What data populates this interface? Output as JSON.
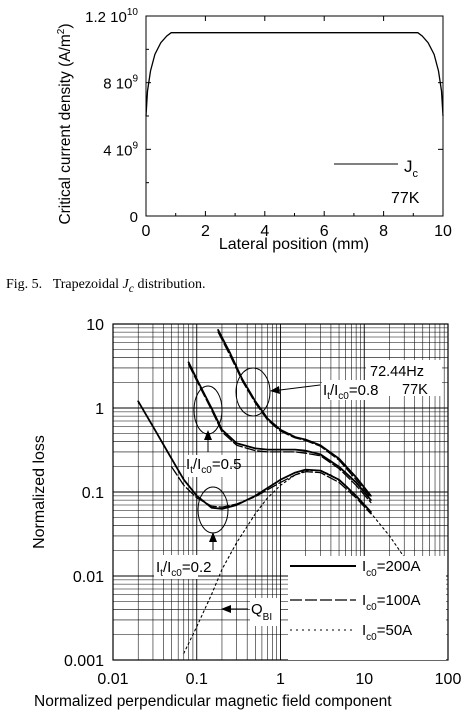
{
  "caption": {
    "fig_label": "Fig. 5.",
    "text_before": "Trapezoidal",
    "symbol": "J",
    "symbol_sub": "c",
    "text_after": "distribution."
  },
  "chart_data": [
    {
      "type": "line",
      "title": "",
      "xlabel": "Lateral position (mm)",
      "ylabel": "Critical current density (A/m",
      "ylabel_sup": "2",
      "ylabel_end": ")",
      "xlim": [
        0,
        10
      ],
      "ylim": [
        0,
        12000000000.0
      ],
      "x_ticks": [
        {
          "value": 0,
          "label": "0"
        },
        {
          "value": 2,
          "label": "2"
        },
        {
          "value": 4,
          "label": "4"
        },
        {
          "value": 6,
          "label": "6"
        },
        {
          "value": 8,
          "label": "8"
        },
        {
          "value": 10,
          "label": "10"
        }
      ],
      "y_ticks": [
        {
          "value": 0,
          "mantissa": "0",
          "exponent": ""
        },
        {
          "value": 4000000000.0,
          "mantissa": "4 10",
          "exponent": "9"
        },
        {
          "value": 8000000000.0,
          "mantissa": "8 10",
          "exponent": "9"
        },
        {
          "value": 12000000000.0,
          "mantissa": "1.2 10",
          "exponent": "10"
        }
      ],
      "grid": false,
      "legend": {
        "position": "bottom-right",
        "label": "J",
        "label_sub": "c"
      },
      "annotation": "77K",
      "series": [
        {
          "name": "Jc",
          "x": [
            0,
            0.05,
            0.15,
            0.3,
            0.5,
            0.7,
            0.85,
            9.15,
            9.3,
            9.5,
            9.7,
            9.85,
            9.95,
            10
          ],
          "y": [
            6000000000.0,
            7500000000.0,
            8700000000.0,
            9700000000.0,
            10400000000.0,
            10800000000.0,
            11000000000.0,
            11000000000.0,
            10800000000.0,
            10400000000.0,
            9700000000.0,
            8700000000.0,
            7500000000.0,
            6000000000.0
          ]
        }
      ]
    },
    {
      "type": "line",
      "title": "",
      "xlabel": "Normalized perpendicular  magnetic field component",
      "ylabel": "Normalized loss",
      "x_scale": "log",
      "y_scale": "log",
      "xlim": [
        0.01,
        100
      ],
      "ylim": [
        0.001,
        10
      ],
      "x_ticks": [
        "0.01",
        "0.1",
        "1",
        "10",
        "100"
      ],
      "y_ticks": [
        "0.001",
        "0.01",
        "0.1",
        "1",
        "10"
      ],
      "grid": true,
      "annotations": {
        "frequency": "72.44Hz",
        "temperature": "77K",
        "ratio_prefix": "I",
        "ratio_sub_t": "t",
        "ratio_mid": "/I",
        "ratio_sub_c0": "c0",
        "ratio_08": "=0.8",
        "ratio_05": "=0.5",
        "ratio_02": "=0.2",
        "q_main": "Q",
        "q_sub": "BI"
      },
      "legend": {
        "position": "bottom-right",
        "prefix": "I",
        "sub": "c0",
        "entries": [
          "=200A",
          "=100A",
          "=50A"
        ]
      },
      "series": [
        {
          "group": "It/Ic0=0.8",
          "style": "solid",
          "x": [
            0.18,
            0.25,
            0.35,
            0.5,
            0.7,
            1,
            1.5,
            2,
            3,
            5,
            8,
            12
          ],
          "y": [
            8.5,
            4.5,
            2.2,
            1.2,
            0.75,
            0.55,
            0.45,
            0.42,
            0.36,
            0.25,
            0.15,
            0.09
          ]
        },
        {
          "group": "It/Ic0=0.8",
          "style": "dashed",
          "x": [
            0.18,
            0.25,
            0.35,
            0.5,
            0.7,
            1,
            1.5,
            2,
            3,
            5,
            8,
            12
          ],
          "y": [
            8.0,
            4.2,
            2.1,
            1.15,
            0.72,
            0.53,
            0.44,
            0.41,
            0.35,
            0.24,
            0.14,
            0.085
          ]
        },
        {
          "group": "It/Ic0=0.5",
          "style": "solid",
          "x": [
            0.08,
            0.1,
            0.15,
            0.2,
            0.3,
            0.5,
            0.7,
            1,
            1.5,
            2,
            3,
            5,
            8,
            12
          ],
          "y": [
            3.5,
            2.2,
            1.0,
            0.55,
            0.38,
            0.33,
            0.32,
            0.32,
            0.32,
            0.31,
            0.28,
            0.2,
            0.13,
            0.08
          ]
        },
        {
          "group": "It/Ic0=0.5",
          "style": "dashed",
          "x": [
            0.08,
            0.1,
            0.15,
            0.2,
            0.3,
            0.5,
            0.7,
            1,
            1.5,
            2,
            3,
            5,
            8,
            12
          ],
          "y": [
            3.3,
            2.1,
            0.95,
            0.52,
            0.36,
            0.31,
            0.3,
            0.3,
            0.3,
            0.29,
            0.27,
            0.19,
            0.12,
            0.075
          ]
        },
        {
          "group": "It/Ic0=0.2",
          "style": "solid",
          "x": [
            0.02,
            0.03,
            0.05,
            0.07,
            0.1,
            0.15,
            0.2,
            0.3,
            0.5,
            1,
            1.5,
            2,
            3,
            5,
            8,
            12
          ],
          "y": [
            1.2,
            0.6,
            0.25,
            0.14,
            0.09,
            0.065,
            0.063,
            0.07,
            0.09,
            0.14,
            0.17,
            0.185,
            0.18,
            0.14,
            0.09,
            0.058
          ]
        },
        {
          "group": "It/Ic0=0.2",
          "style": "dashed",
          "x": [
            0.05,
            0.07,
            0.1,
            0.15,
            0.2,
            0.3,
            0.5,
            1,
            1.5,
            2,
            3,
            5,
            8,
            12
          ],
          "y": [
            0.2,
            0.12,
            0.085,
            0.068,
            0.066,
            0.072,
            0.088,
            0.13,
            0.16,
            0.175,
            0.17,
            0.13,
            0.085,
            0.055
          ]
        },
        {
          "group": "QBI",
          "style": "dotted",
          "x": [
            0.07,
            0.1,
            0.15,
            0.2,
            0.3,
            0.5,
            0.7,
            1,
            1.5,
            2,
            3,
            4,
            6,
            10,
            20,
            50
          ],
          "y": [
            0.0012,
            0.0025,
            0.006,
            0.012,
            0.025,
            0.055,
            0.085,
            0.12,
            0.16,
            0.18,
            0.18,
            0.16,
            0.12,
            0.07,
            0.03,
            0.008
          ]
        }
      ]
    }
  ]
}
